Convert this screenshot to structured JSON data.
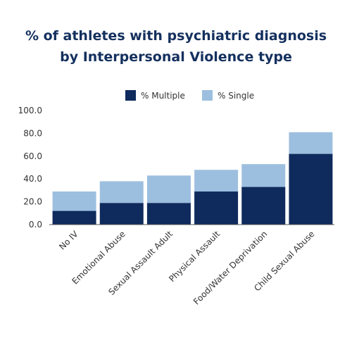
{
  "title_line1": "% of athletes with psychiatric diagnosis",
  "title_line2": "by Interpersonal Violence type",
  "colors": {
    "multiple": "#0f2a5c",
    "single": "#9dbfdf",
    "text": "#14305e",
    "axis": "#555555"
  },
  "chart_data": {
    "type": "bar",
    "stacked": true,
    "categories": [
      "No IV",
      "Emotional Abuse",
      "Sexual Assault Adult",
      "Physical Assault",
      "Food/Water Deprivation",
      "Child Sexual Abuse"
    ],
    "series": [
      {
        "name": "% Multiple",
        "values": [
          12,
          19,
          19,
          29,
          33,
          62
        ]
      },
      {
        "name": "% Single",
        "values": [
          17,
          19,
          24,
          19,
          20,
          19
        ]
      }
    ],
    "ylim": [
      0,
      100
    ],
    "yticks": [
      "0.0",
      "20.0",
      "40.0",
      "60.0",
      "80.0",
      "100.0"
    ],
    "legend_position": "top-right",
    "grid": false,
    "title": "% of athletes with psychiatric diagnosis by Interpersonal Violence type"
  }
}
